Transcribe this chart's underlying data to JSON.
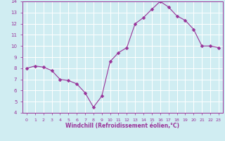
{
  "x": [
    0,
    1,
    2,
    3,
    4,
    5,
    6,
    7,
    8,
    9,
    10,
    11,
    12,
    13,
    14,
    15,
    16,
    17,
    18,
    19,
    20,
    21,
    22,
    23
  ],
  "y": [
    8.0,
    8.2,
    8.1,
    7.8,
    7.0,
    6.9,
    6.6,
    5.8,
    4.5,
    5.5,
    8.6,
    9.4,
    9.85,
    12.0,
    12.55,
    13.3,
    14.0,
    13.5,
    12.7,
    12.3,
    11.5,
    10.0,
    10.0,
    9.85
  ],
  "line_color": "#993399",
  "marker": "D",
  "marker_size": 2.5,
  "bg_color": "#d0edf2",
  "grid_color": "#ffffff",
  "xlabel": "Windchill (Refroidissement éolien,°C)",
  "xlabel_color": "#993399",
  "tick_color": "#993399",
  "ylim": [
    4,
    14
  ],
  "xlim": [
    -0.5,
    23.5
  ],
  "yticks": [
    4,
    5,
    6,
    7,
    8,
    9,
    10,
    11,
    12,
    13,
    14
  ],
  "xticks": [
    0,
    1,
    2,
    3,
    4,
    5,
    6,
    7,
    8,
    9,
    10,
    11,
    12,
    13,
    14,
    15,
    16,
    17,
    18,
    19,
    20,
    21,
    22,
    23
  ],
  "spine_color": "#993399"
}
